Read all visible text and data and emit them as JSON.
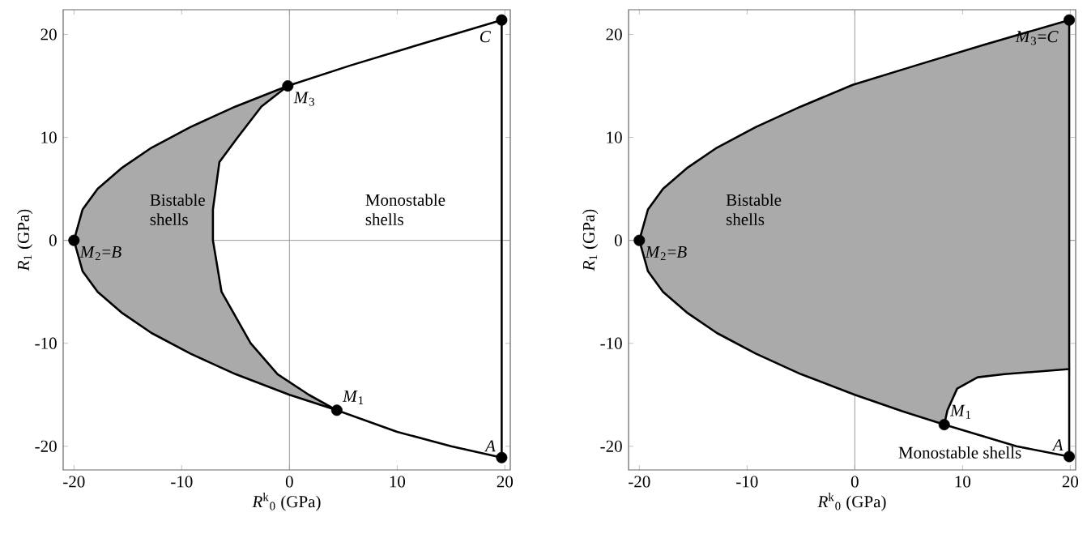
{
  "chart_data": [
    {
      "type": "line",
      "xlabel": "*R*$^{k}$$_{0}$ (GPa)",
      "ylabel": "*R*$_{1}$ (GPa)",
      "xlim": [
        -21,
        20.5
      ],
      "ylim": [
        -22.3,
        22.4
      ],
      "xticks": [
        -20,
        -10,
        0,
        10,
        20
      ],
      "yticks": [
        -20,
        -10,
        0,
        10,
        20
      ],
      "series": [
        {
          "type": "area",
          "color": "#aaaaaa",
          "x": [
            -0.15,
            -5,
            -9.2,
            -12.8,
            -15.6,
            -17.8,
            -19.2,
            -20,
            -19.2,
            -17.8,
            -15.6,
            -12.8,
            -9.2,
            -5,
            0,
            4.4,
            1.8,
            -1.1,
            -3.6,
            -6.3,
            -7.1,
            -7.1,
            -6.5,
            -4.8,
            -2.6,
            -0.15
          ],
          "values": [
            15,
            13,
            11,
            9,
            7,
            5,
            3,
            0,
            -3,
            -5,
            -7,
            -9,
            -11,
            -13,
            -15,
            -16.5,
            -15,
            -13,
            -10,
            -5,
            0,
            3,
            7.6,
            10,
            13,
            15
          ]
        },
        {
          "color": "#000000",
          "x": [
            -0.15,
            5.7,
            12,
            19.7
          ],
          "values": [
            15,
            17,
            19,
            21.4
          ]
        },
        {
          "color": "#000000",
          "x": [
            4.4,
            10,
            15,
            19.7
          ],
          "values": [
            -16.5,
            -18.6,
            -20,
            -21.1
          ]
        },
        {
          "color": "#000000",
          "x": [
            19.7,
            19.7
          ],
          "values": [
            -21.1,
            21.4
          ]
        },
        {
          "type": "scatter",
          "color": "#000000",
          "marker": "circle",
          "x": [
            19.7,
            -0.15,
            -20,
            4.4,
            19.7
          ],
          "values": [
            21.4,
            15,
            0,
            -16.5,
            -21.1
          ]
        }
      ],
      "annotations": [
        {
          "text": "*C*",
          "x": 19.7,
          "y": 21.4
        },
        {
          "text": "*M*$_{3}$",
          "x": -0.15,
          "y": 15
        },
        {
          "text": "*M*$_{2}$=*B*",
          "x": -20,
          "y": 0
        },
        {
          "text": "*M*$_{1}$",
          "x": 4.4,
          "y": -16.5
        },
        {
          "text": "*A*",
          "x": 19.7,
          "y": -21.1
        },
        "Bistable shells",
        "Monostable shells"
      ]
    },
    {
      "type": "line",
      "xlabel": "*R*$^{k}$$_{0}$ (GPa)",
      "ylabel": "*R*$_{1}$ (GPa)",
      "xlim": [
        -21,
        20.5
      ],
      "ylim": [
        -22.3,
        22.4
      ],
      "xticks": [
        -20,
        -10,
        0,
        10,
        20
      ],
      "yticks": [
        -20,
        -10,
        0,
        10,
        20
      ],
      "series": [
        {
          "type": "area",
          "color": "#aaaaaa",
          "x": [
            19.9,
            12,
            5.7,
            -0.2,
            -5,
            -9.2,
            -12.8,
            -15.6,
            -17.8,
            -19.2,
            -20,
            -19.2,
            -17.8,
            -15.6,
            -12.8,
            -9.2,
            -5,
            0,
            4.4,
            8.3,
            8.6,
            9.5,
            11.4,
            13.9,
            19.9,
            19.9
          ],
          "values": [
            21.4,
            19,
            17,
            15.1,
            13,
            11,
            9,
            7,
            5,
            3,
            0,
            -3,
            -5,
            -7,
            -9,
            -11,
            -13,
            -15,
            -16.6,
            -17.9,
            -16.5,
            -14.4,
            -13.3,
            -13,
            -12.5,
            21.4
          ]
        },
        {
          "color": "#000000",
          "x": [
            8.3,
            15,
            19.9
          ],
          "values": [
            -17.9,
            -20,
            -21.0
          ]
        },
        {
          "color": "#000000",
          "x": [
            19.9,
            19.9
          ],
          "values": [
            -21.0,
            -12.5
          ]
        },
        {
          "type": "scatter",
          "color": "#000000",
          "marker": "circle",
          "x": [
            19.9,
            -20,
            8.3,
            19.9
          ],
          "values": [
            21.4,
            0,
            -17.9,
            -21.0
          ]
        }
      ],
      "annotations": [
        {
          "text": "*M*$_{3}$=*C*",
          "x": 19.9,
          "y": 21.4
        },
        {
          "text": "*M*$_{2}$=*B*",
          "x": -20,
          "y": 0
        },
        {
          "text": "*M*$_{1}$",
          "x": 8.3,
          "y": -17.9
        },
        {
          "text": "*A*",
          "x": 19.9,
          "y": -21.0
        },
        "Bistable shells",
        "Monostable shells"
      ]
    }
  ]
}
